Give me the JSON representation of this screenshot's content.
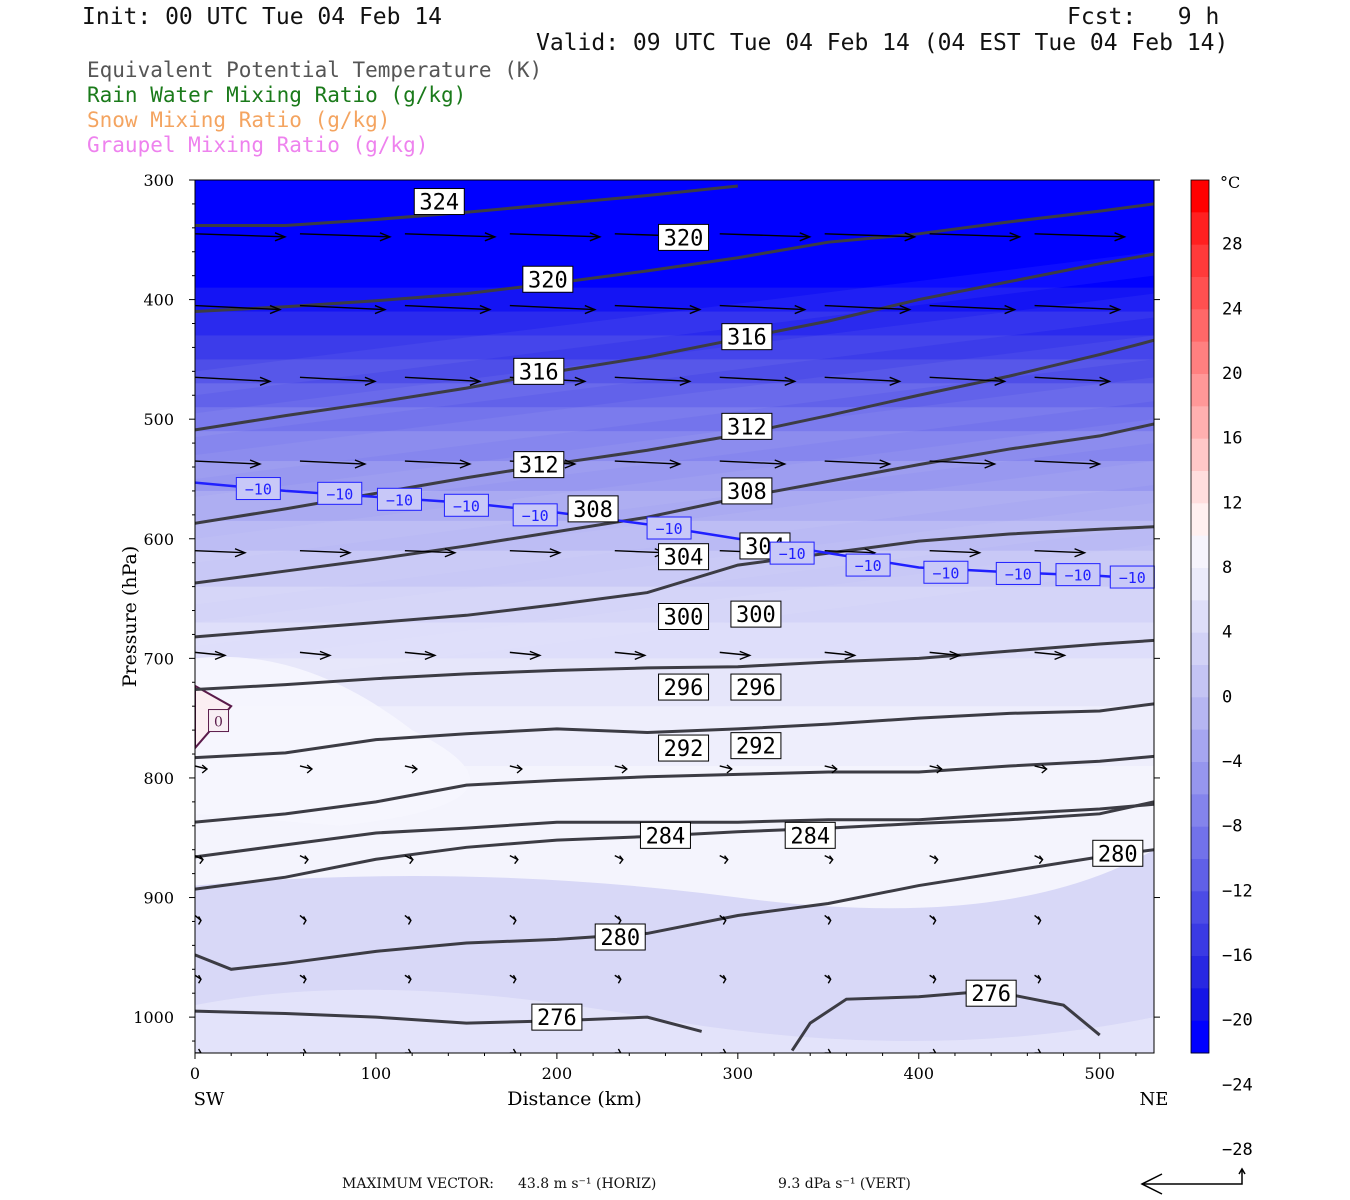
{
  "header": {
    "init": "Init: 00 UTC Tue 04 Feb 14",
    "fcst": "Fcst:   9 h",
    "valid": "Valid: 09 UTC Tue 04 Feb 14 (04 EST Tue 04 Feb 14)"
  },
  "legend": [
    {
      "label": "Equivalent Potential Temperature (K)",
      "color": "#555555"
    },
    {
      "label": "Rain Water Mixing Ratio (g/kg)",
      "color": "#1a7a1a"
    },
    {
      "label": "Snow Mixing Ratio (g/kg)",
      "color": "#f4a460"
    },
    {
      "label": "Graupel Mixing Ratio (g/kg)",
      "color": "#ee82ee"
    }
  ],
  "footer": {
    "max_vector_label": "MAXIMUM VECTOR:",
    "horiz": "43.8 m s⁻¹ (HORIZ)",
    "vert": "9.3 dPa s⁻¹ (VERT)"
  },
  "chart_data": {
    "type": "contour",
    "xlabel": "Distance (km)",
    "ylabel": "Pressure (hPa)",
    "xlim": [
      0,
      530
    ],
    "ylim": [
      1030,
      300
    ],
    "x_ticks": [
      0,
      100,
      200,
      300,
      400,
      500
    ],
    "y_ticks": [
      300,
      400,
      500,
      600,
      700,
      800,
      900,
      1000
    ],
    "x_end_labels": {
      "left": "SW",
      "right": "NE"
    },
    "colorbar": {
      "unit": "°C",
      "tick_labels": [
        "28",
        "24",
        "20",
        "16",
        "12",
        "8",
        "4",
        "0",
        "−4",
        "−8",
        "−12",
        "−16",
        "−20",
        "−24",
        "−28"
      ],
      "colors": [
        "#ff0000",
        "#ff2020",
        "#ff3a3a",
        "#ff5050",
        "#ff6868",
        "#ff8080",
        "#ff9898",
        "#ffb0b0",
        "#ffc8c8",
        "#ffdede",
        "#fff0f0",
        "#f6f4fc",
        "#ebebfa",
        "#dedef8",
        "#d2d2f6",
        "#c4c4f4",
        "#b6b6f2",
        "#a6a6f0",
        "#9696ee",
        "#8484ec",
        "#7272ea",
        "#6060e8",
        "#4c4ce6",
        "#3a3ae4",
        "#2828e2",
        "#1616e6",
        "#0000ff"
      ]
    },
    "theta_e_contours": [
      {
        "value": 324,
        "label": "324",
        "points": [
          [
            0,
            338
          ],
          [
            50,
            338
          ],
          [
            100,
            333
          ],
          [
            150,
            327
          ],
          [
            200,
            320
          ],
          [
            250,
            313
          ],
          [
            300,
            305
          ]
        ]
      },
      {
        "value": 320,
        "label": "320",
        "points": [
          [
            0,
            410
          ],
          [
            50,
            406
          ],
          [
            100,
            401
          ],
          [
            150,
            395
          ],
          [
            200,
            386
          ],
          [
            250,
            376
          ],
          [
            300,
            365
          ],
          [
            350,
            352
          ],
          [
            400,
            345
          ],
          [
            450,
            335
          ],
          [
            500,
            326
          ],
          [
            530,
            320
          ]
        ]
      },
      {
        "value": 316,
        "label": "316",
        "points": [
          [
            0,
            509
          ],
          [
            50,
            497
          ],
          [
            100,
            486
          ],
          [
            150,
            474
          ],
          [
            200,
            460
          ],
          [
            250,
            448
          ],
          [
            300,
            433
          ],
          [
            350,
            418
          ],
          [
            400,
            400
          ],
          [
            450,
            385
          ],
          [
            500,
            370
          ],
          [
            530,
            362
          ]
        ]
      },
      {
        "value": 312,
        "label": "312",
        "points": [
          [
            0,
            587
          ],
          [
            50,
            575
          ],
          [
            100,
            562
          ],
          [
            150,
            549
          ],
          [
            200,
            537
          ],
          [
            250,
            526
          ],
          [
            300,
            513
          ],
          [
            350,
            497
          ],
          [
            400,
            480
          ],
          [
            450,
            464
          ],
          [
            500,
            446
          ],
          [
            530,
            434
          ]
        ]
      },
      {
        "value": 308,
        "label": "308",
        "points": [
          [
            0,
            637
          ],
          [
            50,
            627
          ],
          [
            100,
            617
          ],
          [
            150,
            606
          ],
          [
            200,
            594
          ],
          [
            250,
            582
          ],
          [
            300,
            566
          ],
          [
            350,
            552
          ],
          [
            400,
            538
          ],
          [
            450,
            525
          ],
          [
            500,
            514
          ],
          [
            530,
            504
          ]
        ]
      },
      {
        "value": 304,
        "label": "304",
        "points": [
          [
            0,
            682
          ],
          [
            50,
            676
          ],
          [
            100,
            670
          ],
          [
            150,
            664
          ],
          [
            200,
            655
          ],
          [
            250,
            645
          ],
          [
            300,
            622
          ],
          [
            350,
            612
          ],
          [
            400,
            602
          ],
          [
            450,
            596
          ],
          [
            500,
            592
          ],
          [
            530,
            590
          ]
        ]
      },
      {
        "value": 300,
        "label": "300",
        "points": [
          [
            0,
            726
          ],
          [
            50,
            722
          ],
          [
            100,
            717
          ],
          [
            150,
            713
          ],
          [
            200,
            710
          ],
          [
            250,
            708
          ],
          [
            300,
            707
          ],
          [
            350,
            703
          ],
          [
            400,
            700
          ],
          [
            450,
            694
          ],
          [
            500,
            688
          ],
          [
            530,
            685
          ]
        ]
      },
      {
        "value": 296,
        "label": "296",
        "points": [
          [
            0,
            783
          ],
          [
            50,
            779
          ],
          [
            100,
            768
          ],
          [
            150,
            763
          ],
          [
            200,
            759
          ],
          [
            250,
            762
          ],
          [
            300,
            759
          ],
          [
            350,
            755
          ],
          [
            400,
            750
          ],
          [
            450,
            746
          ],
          [
            500,
            744
          ],
          [
            530,
            738
          ]
        ]
      },
      {
        "value": 292,
        "label": "292",
        "points": [
          [
            0,
            837
          ],
          [
            50,
            830
          ],
          [
            100,
            820
          ],
          [
            150,
            806
          ],
          [
            200,
            802
          ],
          [
            250,
            799
          ],
          [
            300,
            797
          ],
          [
            350,
            795
          ],
          [
            400,
            795
          ],
          [
            450,
            790
          ],
          [
            500,
            786
          ],
          [
            530,
            782
          ]
        ]
      },
      {
        "value": 288,
        "label": "",
        "points": [
          [
            0,
            866
          ],
          [
            50,
            856
          ],
          [
            100,
            846
          ],
          [
            150,
            842
          ],
          [
            200,
            837
          ],
          [
            250,
            837
          ],
          [
            300,
            837
          ],
          [
            350,
            835
          ],
          [
            400,
            835
          ],
          [
            450,
            830
          ],
          [
            500,
            826
          ],
          [
            530,
            822
          ]
        ]
      },
      {
        "value": 284,
        "label": "284",
        "points": [
          [
            0,
            893
          ],
          [
            50,
            883
          ],
          [
            100,
            868
          ],
          [
            150,
            858
          ],
          [
            200,
            852
          ],
          [
            250,
            849
          ],
          [
            300,
            845
          ],
          [
            350,
            842
          ],
          [
            400,
            838
          ],
          [
            450,
            835
          ],
          [
            500,
            830
          ],
          [
            530,
            820
          ]
        ]
      },
      {
        "value": 280,
        "label": "280",
        "points": [
          [
            0,
            948
          ],
          [
            20,
            960
          ],
          [
            50,
            955
          ],
          [
            100,
            945
          ],
          [
            150,
            938
          ],
          [
            200,
            935
          ],
          [
            250,
            930
          ],
          [
            300,
            915
          ],
          [
            350,
            905
          ],
          [
            400,
            890
          ],
          [
            450,
            878
          ],
          [
            500,
            866
          ],
          [
            530,
            860
          ]
        ]
      },
      {
        "value": 276,
        "label": "276",
        "points": [
          [
            0,
            995
          ],
          [
            50,
            997
          ],
          [
            100,
            1000
          ],
          [
            150,
            1005
          ],
          [
            200,
            1003
          ],
          [
            250,
            1000
          ],
          [
            280,
            1012
          ]
        ]
      },
      {
        "value": 276,
        "label": "276",
        "points": [
          [
            330,
            1028
          ],
          [
            340,
            1005
          ],
          [
            360,
            985
          ],
          [
            400,
            983
          ],
          [
            440,
            978
          ],
          [
            480,
            990
          ],
          [
            500,
            1015
          ]
        ]
      }
    ],
    "isotherm_minus10": {
      "label": "−10",
      "color": "#2020ff",
      "points": [
        [
          0,
          553
        ],
        [
          50,
          560
        ],
        [
          100,
          565
        ],
        [
          150,
          570
        ],
        [
          200,
          578
        ],
        [
          250,
          588
        ],
        [
          300,
          600
        ],
        [
          350,
          612
        ],
        [
          400,
          624
        ],
        [
          450,
          628
        ],
        [
          500,
          631
        ],
        [
          530,
          634
        ]
      ]
    },
    "isotherm_zero": {
      "label": "0",
      "points": [
        [
          0,
          723
        ],
        [
          20,
          740
        ],
        [
          0,
          775
        ]
      ]
    },
    "wind_barbs_note": "Wind vectors shown throughout the cross-section"
  }
}
